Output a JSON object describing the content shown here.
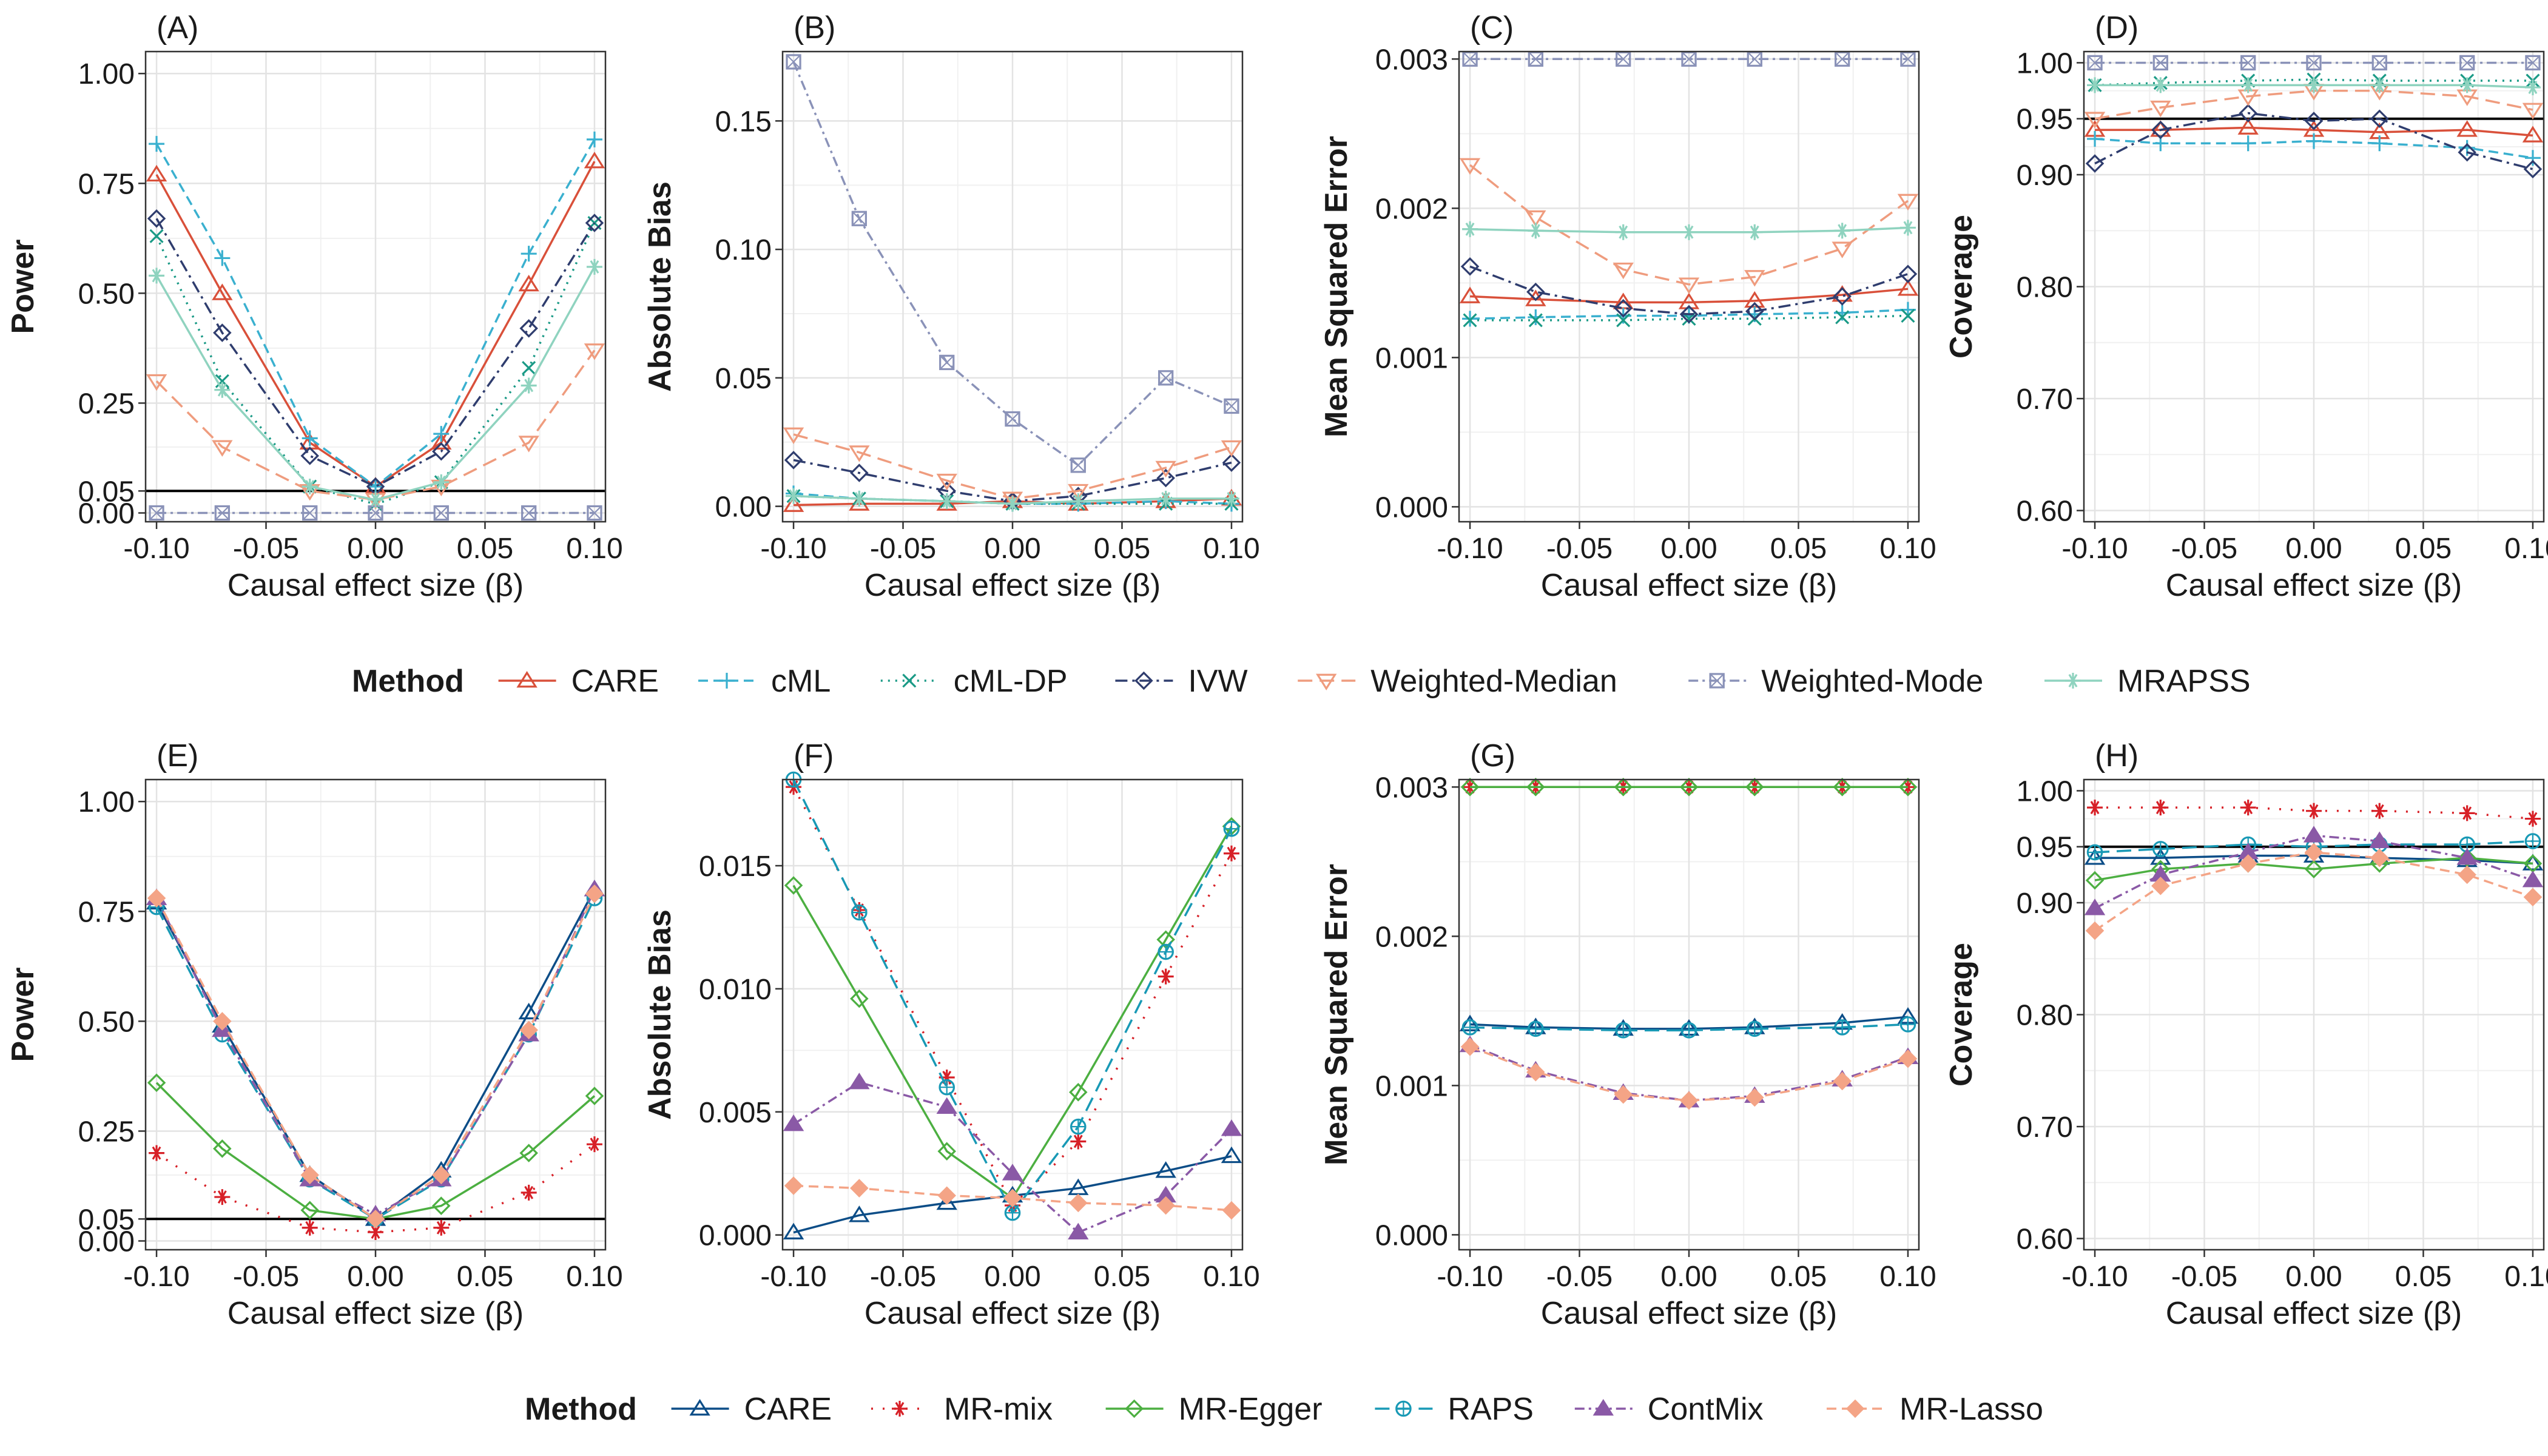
{
  "x_values": [
    -0.1,
    -0.07,
    -0.03,
    0.0,
    0.03,
    0.07,
    0.1
  ],
  "xlabel": "Causal effect size (β)",
  "x_ticks": [
    "-0.10",
    "-0.05",
    "0.00",
    "0.05",
    "0.10"
  ],
  "legends": [
    {
      "title": "Method",
      "entries": [
        "CARE",
        "cML",
        "cML-DP",
        "IVW",
        "Weighted-Median",
        "Weighted-Mode",
        "MRAPSS"
      ]
    },
    {
      "title": "Method",
      "entries": [
        "CARE",
        "MR-mix",
        "MR-Egger",
        "RAPS",
        "ContMix",
        "MR-Lasso"
      ]
    }
  ],
  "methods": {
    "CARE": {
      "color": "#d9503a",
      "dash": "",
      "marker": "triangle"
    },
    "cML": {
      "color": "#3ab0cf",
      "dash": "16,9",
      "marker": "plus"
    },
    "cML-DP": {
      "color": "#1a9a86",
      "dash": "3,9",
      "marker": "x"
    },
    "IVW": {
      "color": "#2f3d6e",
      "dash": "20,8,4,8",
      "marker": "diamond"
    },
    "Weighted-Median": {
      "color": "#ef9c7e",
      "dash": "24,12",
      "marker": "triangle-down"
    },
    "Weighted-Mode": {
      "color": "#8a92b8",
      "dash": "16,7,4,7",
      "marker": "square-x"
    },
    "MRAPSS": {
      "color": "#8fd3bf",
      "dash": "",
      "marker": "star"
    },
    "CARE2": {
      "color": "#0c4d87",
      "dash": "",
      "marker": "triangle"
    },
    "MR-mix": {
      "color": "#d72027",
      "dash": "3,16",
      "marker": "asterisk"
    },
    "MR-Egger": {
      "color": "#4caf41",
      "dash": "",
      "marker": "diamond"
    },
    "RAPS": {
      "color": "#1899b5",
      "dash": "24,12",
      "marker": "circle-plus"
    },
    "ContMix": {
      "color": "#8a59a6",
      "dash": "16,7,4,7",
      "marker": "triangle-filled"
    },
    "MR-Lasso": {
      "color": "#f4a486",
      "dash": "16,9",
      "marker": "diamond-filled"
    }
  },
  "chart_data": [
    {
      "type": "line",
      "panel": "(A)",
      "ylabel": "Power",
      "ylim": [
        -0.02,
        1.05
      ],
      "y_ticks": [
        0.0,
        0.05,
        0.25,
        0.5,
        0.75,
        1.0
      ],
      "y_tick_labels": [
        "0.00",
        "0.05",
        "0.25",
        "0.50",
        "0.75",
        "1.00"
      ],
      "hline": 0.05,
      "series": [
        {
          "name": "CARE",
          "values": [
            0.77,
            0.5,
            0.16,
            0.06,
            0.16,
            0.52,
            0.8
          ]
        },
        {
          "name": "cML",
          "values": [
            0.84,
            0.58,
            0.17,
            0.06,
            0.18,
            0.59,
            0.85
          ]
        },
        {
          "name": "cML-DP",
          "values": [
            0.63,
            0.3,
            0.06,
            0.02,
            0.07,
            0.33,
            0.66
          ]
        },
        {
          "name": "IVW",
          "values": [
            0.67,
            0.41,
            0.13,
            0.06,
            0.14,
            0.42,
            0.66
          ]
        },
        {
          "name": "Weighted-Median",
          "values": [
            0.3,
            0.15,
            0.05,
            0.03,
            0.06,
            0.16,
            0.37
          ]
        },
        {
          "name": "Weighted-Mode",
          "values": [
            0.0,
            0.0,
            0.0,
            0.0,
            0.0,
            0.0,
            0.0
          ]
        },
        {
          "name": "MRAPSS",
          "values": [
            0.54,
            0.28,
            0.06,
            0.03,
            0.07,
            0.29,
            0.56
          ]
        }
      ]
    },
    {
      "type": "line",
      "panel": "(B)",
      "ylabel": "Absolute Bias",
      "ylim": [
        -0.006,
        0.177
      ],
      "y_ticks": [
        0.0,
        0.05,
        0.1,
        0.15
      ],
      "y_tick_labels": [
        "0.00",
        "0.05",
        "0.10",
        "0.15"
      ],
      "hline": null,
      "series": [
        {
          "name": "CARE",
          "values": [
            0.0005,
            0.001,
            0.001,
            0.002,
            0.001,
            0.002,
            0.003
          ]
        },
        {
          "name": "cML",
          "values": [
            0.005,
            0.003,
            0.002,
            0.001,
            0.001,
            0.002,
            0.001
          ]
        },
        {
          "name": "cML-DP",
          "values": [
            0.004,
            0.003,
            0.002,
            0.001,
            0.001,
            0.001,
            0.001
          ]
        },
        {
          "name": "IVW",
          "values": [
            0.018,
            0.013,
            0.006,
            0.002,
            0.004,
            0.011,
            0.017
          ]
        },
        {
          "name": "Weighted-Median",
          "values": [
            0.028,
            0.021,
            0.01,
            0.003,
            0.006,
            0.015,
            0.023
          ]
        },
        {
          "name": "Weighted-Mode",
          "values": [
            0.173,
            0.112,
            0.056,
            0.034,
            0.016,
            0.05,
            0.039
          ]
        },
        {
          "name": "MRAPSS",
          "values": [
            0.004,
            0.003,
            0.002,
            0.001,
            0.002,
            0.003,
            0.003
          ]
        }
      ]
    },
    {
      "type": "line",
      "panel": "(C)",
      "ylabel": "Mean Squared Error",
      "ylim": [
        -0.0001,
        0.00305
      ],
      "y_ticks": [
        0.0,
        0.001,
        0.002,
        0.003
      ],
      "y_tick_labels": [
        "0.000",
        "0.001",
        "0.002",
        "0.003"
      ],
      "hline": null,
      "series": [
        {
          "name": "CARE",
          "values": [
            0.00141,
            0.00139,
            0.00137,
            0.00137,
            0.00138,
            0.00142,
            0.00146
          ]
        },
        {
          "name": "cML",
          "values": [
            0.00126,
            0.00127,
            0.00128,
            0.00128,
            0.00129,
            0.0013,
            0.00132
          ]
        },
        {
          "name": "cML-DP",
          "values": [
            0.00125,
            0.00125,
            0.00125,
            0.00126,
            0.00126,
            0.00127,
            0.00128
          ]
        },
        {
          "name": "IVW",
          "values": [
            0.00161,
            0.00144,
            0.00133,
            0.00129,
            0.00131,
            0.00141,
            0.00156
          ]
        },
        {
          "name": "Weighted-Median",
          "values": [
            0.00229,
            0.00194,
            0.00159,
            0.00149,
            0.00154,
            0.00173,
            0.00205
          ]
        },
        {
          "name": "Weighted-Mode",
          "values": [
            0.003,
            0.003,
            0.003,
            0.003,
            0.003,
            0.003,
            0.003
          ]
        },
        {
          "name": "MRAPSS",
          "values": [
            0.00186,
            0.00185,
            0.00184,
            0.00184,
            0.00184,
            0.00185,
            0.00187
          ]
        }
      ]
    },
    {
      "type": "line",
      "panel": "(D)",
      "ylabel": "Coverage",
      "ylim": [
        0.59,
        1.01
      ],
      "y_ticks": [
        0.6,
        0.7,
        0.8,
        0.9,
        0.95,
        1.0
      ],
      "y_tick_labels": [
        "0.60",
        "0.70",
        "0.80",
        "0.90",
        "0.95",
        "1.00"
      ],
      "hline": 0.95,
      "series": [
        {
          "name": "CARE",
          "values": [
            0.94,
            0.94,
            0.942,
            0.94,
            0.938,
            0.94,
            0.935
          ]
        },
        {
          "name": "cML",
          "values": [
            0.932,
            0.928,
            0.928,
            0.93,
            0.928,
            0.924,
            0.915
          ]
        },
        {
          "name": "cML-DP",
          "values": [
            0.98,
            0.982,
            0.984,
            0.985,
            0.984,
            0.984,
            0.984
          ]
        },
        {
          "name": "IVW",
          "values": [
            0.91,
            0.94,
            0.955,
            0.948,
            0.95,
            0.92,
            0.905
          ]
        },
        {
          "name": "Weighted-Median",
          "values": [
            0.95,
            0.96,
            0.97,
            0.975,
            0.975,
            0.97,
            0.958
          ]
        },
        {
          "name": "Weighted-Mode",
          "values": [
            1.0,
            1.0,
            1.0,
            1.0,
            1.0,
            1.0,
            1.0
          ]
        },
        {
          "name": "MRAPSS",
          "values": [
            0.98,
            0.98,
            0.98,
            0.98,
            0.98,
            0.98,
            0.978
          ]
        }
      ]
    },
    {
      "type": "line",
      "panel": "(E)",
      "ylabel": "Power",
      "ylim": [
        -0.02,
        1.05
      ],
      "y_ticks": [
        0.0,
        0.05,
        0.25,
        0.5,
        0.75,
        1.0
      ],
      "y_tick_labels": [
        "0.00",
        "0.05",
        "0.25",
        "0.50",
        "0.75",
        "1.00"
      ],
      "hline": 0.05,
      "series": [
        {
          "name": "CARE2",
          "label": "CARE",
          "values": [
            0.77,
            0.49,
            0.15,
            0.05,
            0.16,
            0.52,
            0.8
          ]
        },
        {
          "name": "MR-mix",
          "values": [
            0.2,
            0.1,
            0.03,
            0.02,
            0.03,
            0.11,
            0.22
          ]
        },
        {
          "name": "MR-Egger",
          "values": [
            0.36,
            0.21,
            0.07,
            0.05,
            0.08,
            0.2,
            0.33
          ]
        },
        {
          "name": "RAPS",
          "values": [
            0.76,
            0.47,
            0.14,
            0.05,
            0.14,
            0.47,
            0.78
          ]
        },
        {
          "name": "ContMix",
          "values": [
            0.78,
            0.48,
            0.14,
            0.06,
            0.14,
            0.47,
            0.8
          ]
        },
        {
          "name": "MR-Lasso",
          "values": [
            0.78,
            0.5,
            0.15,
            0.05,
            0.15,
            0.48,
            0.79
          ]
        }
      ]
    },
    {
      "type": "line",
      "panel": "(F)",
      "ylabel": "Absolute Bias",
      "ylim": [
        -0.0006,
        0.0185
      ],
      "y_ticks": [
        0.0,
        0.005,
        0.01,
        0.015
      ],
      "y_tick_labels": [
        "0.000",
        "0.005",
        "0.010",
        "0.015"
      ],
      "hline": null,
      "series": [
        {
          "name": "CARE2",
          "label": "CARE",
          "values": [
            0.0001,
            0.0008,
            0.0013,
            0.0016,
            0.0019,
            0.0026,
            0.0032
          ]
        },
        {
          "name": "MR-mix",
          "values": [
            0.0182,
            0.0132,
            0.0064,
            0.0012,
            0.0038,
            0.0105,
            0.0155
          ]
        },
        {
          "name": "MR-Egger",
          "values": [
            0.0142,
            0.0096,
            0.0034,
            0.0015,
            0.0058,
            0.012,
            0.0166
          ]
        },
        {
          "name": "RAPS",
          "values": [
            0.0185,
            0.0131,
            0.006,
            0.0009,
            0.0044,
            0.0115,
            0.0165
          ]
        },
        {
          "name": "ContMix",
          "values": [
            0.0045,
            0.0062,
            0.0052,
            0.0025,
            0.0001,
            0.0016,
            0.0043
          ]
        },
        {
          "name": "MR-Lasso",
          "values": [
            0.002,
            0.0019,
            0.0016,
            0.0015,
            0.0013,
            0.0012,
            0.001
          ]
        }
      ]
    },
    {
      "type": "line",
      "panel": "(G)",
      "ylabel": "Mean Squared Error",
      "ylim": [
        -0.0001,
        0.00305
      ],
      "y_ticks": [
        0.0,
        0.001,
        0.002,
        0.003
      ],
      "y_tick_labels": [
        "0.000",
        "0.001",
        "0.002",
        "0.003"
      ],
      "hline": null,
      "series": [
        {
          "name": "CARE2",
          "label": "CARE",
          "values": [
            0.00141,
            0.00139,
            0.00138,
            0.00138,
            0.00139,
            0.00142,
            0.00146
          ]
        },
        {
          "name": "MR-mix",
          "values": [
            0.003,
            0.003,
            0.003,
            0.003,
            0.003,
            0.003,
            0.003
          ]
        },
        {
          "name": "MR-Egger",
          "values": [
            0.003,
            0.003,
            0.003,
            0.003,
            0.003,
            0.003,
            0.003
          ]
        },
        {
          "name": "RAPS",
          "values": [
            0.00139,
            0.00138,
            0.00137,
            0.00137,
            0.00138,
            0.00139,
            0.00141
          ]
        },
        {
          "name": "ContMix",
          "values": [
            0.00127,
            0.0011,
            0.00095,
            0.0009,
            0.00093,
            0.00104,
            0.00119
          ]
        },
        {
          "name": "MR-Lasso",
          "values": [
            0.00126,
            0.00109,
            0.00094,
            0.0009,
            0.00092,
            0.00103,
            0.00118
          ]
        }
      ]
    },
    {
      "type": "line",
      "panel": "(H)",
      "ylabel": "Coverage",
      "ylim": [
        0.59,
        1.01
      ],
      "y_ticks": [
        0.6,
        0.7,
        0.8,
        0.9,
        0.95,
        1.0
      ],
      "y_tick_labels": [
        "0.60",
        "0.70",
        "0.80",
        "0.90",
        "0.95",
        "1.00"
      ],
      "hline": 0.95,
      "series": [
        {
          "name": "CARE2",
          "label": "CARE",
          "values": [
            0.94,
            0.94,
            0.942,
            0.942,
            0.94,
            0.938,
            0.935
          ]
        },
        {
          "name": "MR-mix",
          "values": [
            0.985,
            0.985,
            0.985,
            0.982,
            0.982,
            0.98,
            0.975
          ]
        },
        {
          "name": "MR-Egger",
          "values": [
            0.92,
            0.93,
            0.935,
            0.93,
            0.935,
            0.94,
            0.935
          ]
        },
        {
          "name": "RAPS",
          "values": [
            0.945,
            0.948,
            0.952,
            0.95,
            0.952,
            0.952,
            0.955
          ]
        },
        {
          "name": "ContMix",
          "values": [
            0.895,
            0.925,
            0.945,
            0.96,
            0.955,
            0.94,
            0.92
          ]
        },
        {
          "name": "MR-Lasso",
          "values": [
            0.875,
            0.915,
            0.935,
            0.945,
            0.94,
            0.925,
            0.905
          ]
        }
      ]
    }
  ]
}
